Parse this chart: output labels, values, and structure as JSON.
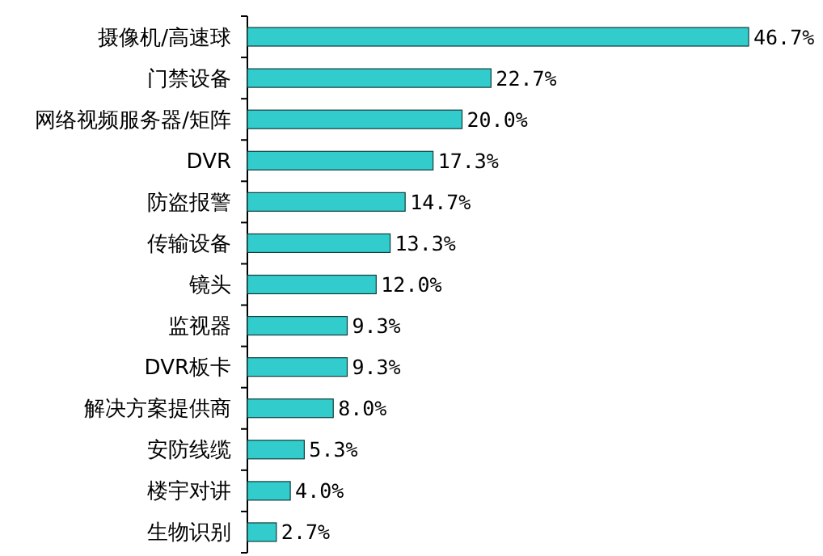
{
  "chart_data": {
    "type": "bar",
    "orientation": "horizontal",
    "color": "#33cccc",
    "categories": [
      "摄像机/高速球",
      "门禁设备",
      "网络视频服务器/矩阵",
      "DVR",
      "防盗报警",
      "传输设备",
      "镜头",
      "监视器",
      "DVR板卡",
      "解决方案提供商",
      "安防线缆",
      "楼宇对讲",
      "生物识别"
    ],
    "values": [
      46.7,
      22.7,
      20.0,
      17.3,
      14.7,
      13.3,
      12.0,
      9.3,
      9.3,
      8.0,
      5.3,
      4.0,
      2.7
    ],
    "value_labels": [
      "46.7%",
      "22.7%",
      "20.0%",
      "17.3%",
      "14.7%",
      "13.3%",
      "12.0%",
      "9.3%",
      "9.3%",
      "8.0%",
      "5.3%",
      "4.0%",
      "2.7%"
    ]
  }
}
